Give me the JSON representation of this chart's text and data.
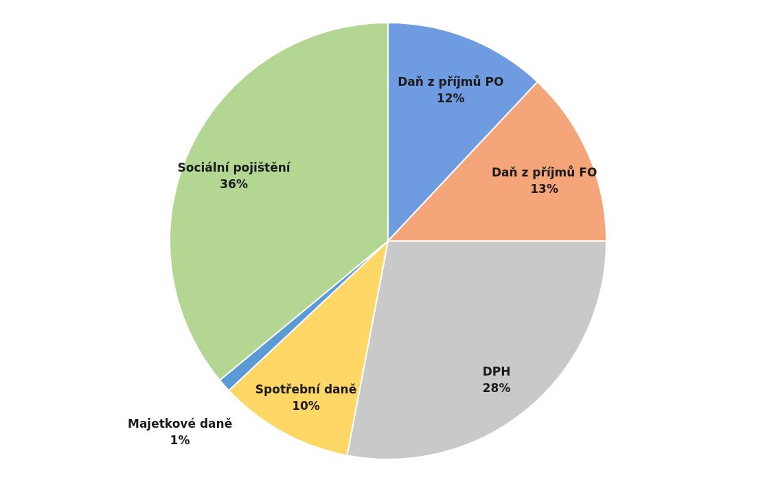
{
  "chart_data": {
    "type": "pie",
    "categories": [
      "Daň z příjmů PO",
      "Daň z příjmů FO",
      "DPH",
      "Spotřební daně",
      "Majetkové daně",
      "Sociální pojištění"
    ],
    "values": [
      12,
      13,
      28,
      10,
      1,
      36
    ],
    "value_labels": [
      "12%",
      "13%",
      "28%",
      "10%",
      "1%",
      "36%"
    ],
    "colors": [
      "#6f9be0",
      "#f5a57a",
      "#c9c9c9",
      "#ffd766",
      "#5b9bd5",
      "#b3d693"
    ]
  }
}
